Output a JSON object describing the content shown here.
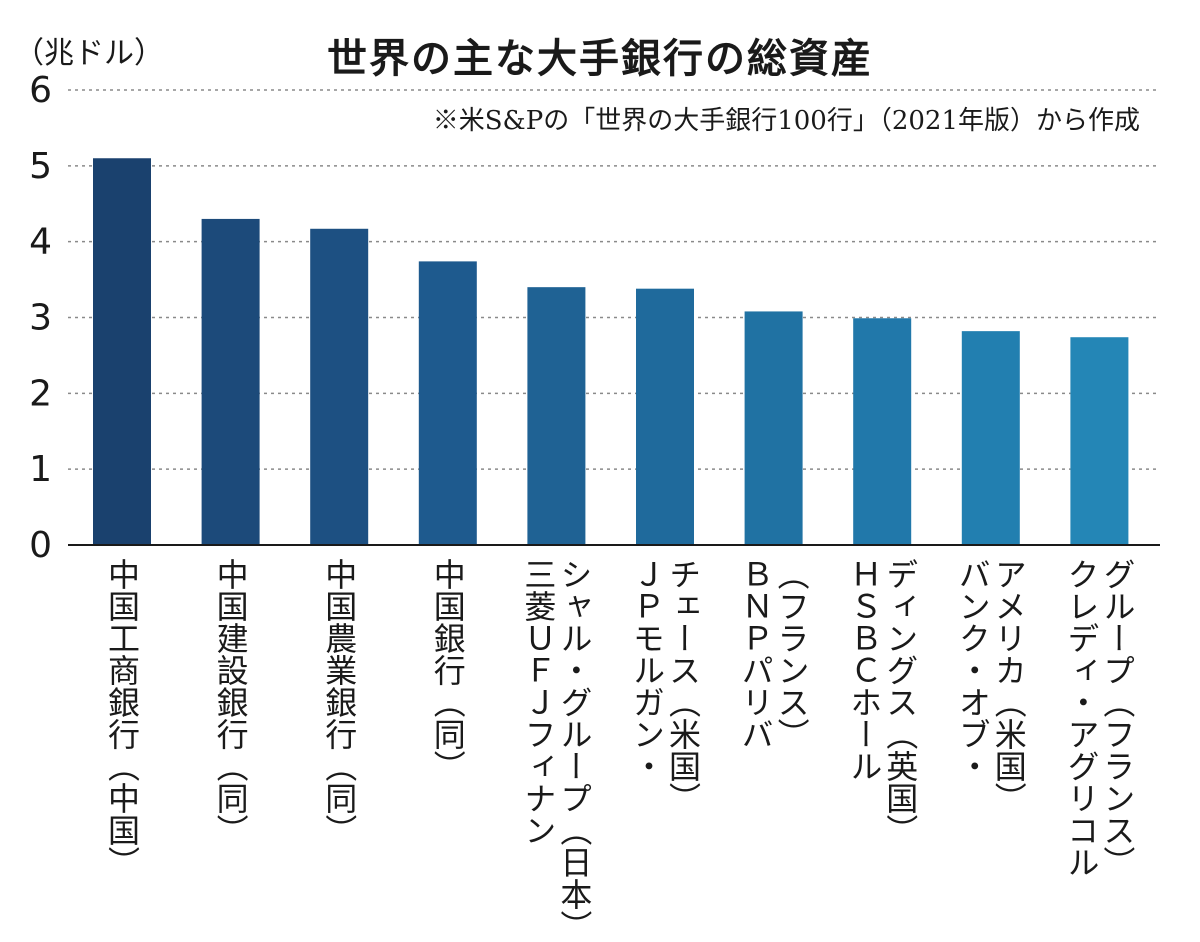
{
  "chart_data": {
    "type": "bar",
    "title": "世界の主な大手銀行の総資産",
    "unit_label": "（兆ドル）",
    "note": "※米S&Pの「世界の大手銀行100行」（2021年版）から作成",
    "categories": [
      "中国工商銀行（中国）",
      "中国建設銀行（同）",
      "中国農業銀行（同）",
      "中国銀行（同）",
      "三菱UFJフィナンシャル・グループ（日本）",
      "JPモルガン・チェース（米国）",
      "BNPパリバ（フランス）",
      "HSBCホールディングス（英国）",
      "バンク・オブ・アメリカ（米国）",
      "クレディ・アグリコル・グループ（フランス）"
    ],
    "category_lines": [
      [
        "中国工商銀行（中国）"
      ],
      [
        "中国建設銀行（同）"
      ],
      [
        "中国農業銀行（同）"
      ],
      [
        "中国銀行（同）"
      ],
      [
        "シャル・グループ（日本）",
        "三菱ＵＦＪフィナン"
      ],
      [
        "チェース（米国）",
        "ＪＰモルガン・"
      ],
      [
        "（フランス）",
        "ＢＮＰパリバ"
      ],
      [
        "ディングス（英国）",
        "ＨＳＢＣホール"
      ],
      [
        "アメリカ（米国）",
        "バンク・オブ・"
      ],
      [
        "グループ（フランス）",
        "クレディ・アグリコル"
      ]
    ],
    "values": [
      5.1,
      4.3,
      4.17,
      3.74,
      3.4,
      3.38,
      3.08,
      2.99,
      2.82,
      2.74
    ],
    "ylim": [
      0,
      6
    ],
    "yticks": [
      0,
      1,
      2,
      3,
      4,
      5,
      6
    ],
    "grid": true,
    "colors": [
      "#1a416e",
      "#1c4a7a",
      "#1d5082",
      "#1e5a8e",
      "#1f6294",
      "#1f6a9c",
      "#2072a3",
      "#2178aa",
      "#227fb0",
      "#2486b6"
    ]
  }
}
